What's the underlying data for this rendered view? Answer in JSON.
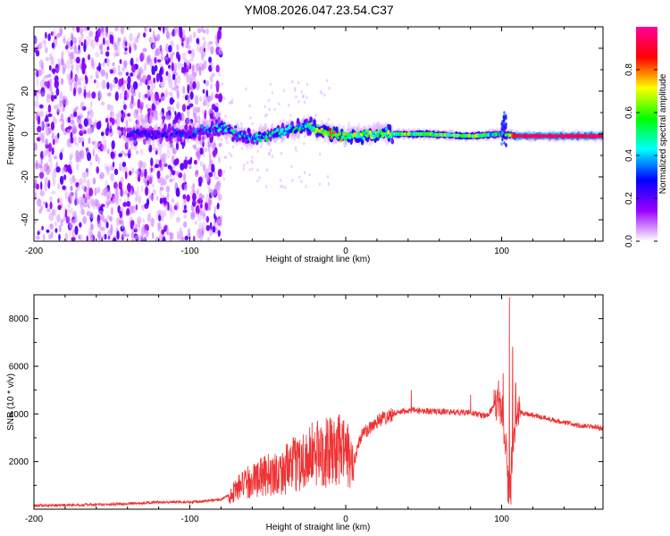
{
  "figure": {
    "title": "YM08.2026.047.23.54.C37"
  },
  "chart_data": [
    {
      "type": "heatmap",
      "name": "spectrogram",
      "xlabel": "Height of straight line (km)",
      "ylabel": "Frequency (Hz)",
      "xlim": [
        -200,
        165
      ],
      "ylim": [
        -50,
        50
      ],
      "x_ticks": [
        -200,
        -100,
        0,
        100
      ],
      "x_tick_labels": [
        "-200",
        "-100",
        "0",
        "100"
      ],
      "y_ticks": [
        -40,
        -20,
        0,
        20,
        40
      ],
      "y_tick_labels": [
        "-40",
        "-20",
        "0",
        "20",
        "40"
      ],
      "ridge_start_km": -140,
      "noise_end_km": -80,
      "ridge": [
        {
          "x": -140,
          "freq": 0,
          "amp": 0.15
        },
        {
          "x": -100,
          "freq": 0,
          "amp": 0.2
        },
        {
          "x": -80,
          "freq": 3,
          "amp": 0.35
        },
        {
          "x": -60,
          "freq": -2,
          "amp": 0.35
        },
        {
          "x": -40,
          "freq": 1,
          "amp": 0.4
        },
        {
          "x": -25,
          "freq": 4,
          "amp": 0.45
        },
        {
          "x": -10,
          "freq": 0,
          "amp": 0.7
        },
        {
          "x": 0,
          "freq": -1,
          "amp": 0.6
        },
        {
          "x": 20,
          "freq": 0,
          "amp": 0.55
        },
        {
          "x": 50,
          "freq": 0,
          "amp": 0.55
        },
        {
          "x": 80,
          "freq": -1,
          "amp": 0.6
        },
        {
          "x": 100,
          "freq": 0,
          "amp": 0.4
        },
        {
          "x": 110,
          "freq": -1,
          "amp": 0.95
        },
        {
          "x": 165,
          "freq": -1,
          "amp": 0.95
        }
      ],
      "colorbar": {
        "label": "Normalized spectral amplitude",
        "range": [
          0,
          1
        ],
        "ticks": [
          0.0,
          0.2,
          0.4,
          0.6,
          0.8
        ],
        "tick_labels": [
          "0.0",
          "0.2",
          "0.4",
          "0.6",
          "0.8"
        ],
        "colors": [
          "#ffffff",
          "#9900ff",
          "#0000ff",
          "#00ffff",
          "#00ff00",
          "#ffff00",
          "#ff0000",
          "#ff0099"
        ]
      }
    },
    {
      "type": "line",
      "name": "snr",
      "xlabel": "Height of straight line (km)",
      "ylabel": "SNR (10 * v/v)",
      "xlim": [
        -200,
        165
      ],
      "ylim": [
        0,
        9000
      ],
      "x_ticks": [
        -200,
        -100,
        0,
        100
      ],
      "x_tick_labels": [
        "-200",
        "-100",
        "0",
        "100"
      ],
      "y_ticks": [
        2000,
        4000,
        6000,
        8000
      ],
      "y_tick_labels": [
        "2000",
        "4000",
        "6000",
        "8000"
      ],
      "line_color": "#ee3333",
      "series": [
        {
          "name": "SNR",
          "x": [
            -200,
            -150,
            -120,
            -100,
            -80,
            -75,
            -70,
            -60,
            -50,
            -40,
            -30,
            -20,
            -10,
            0,
            5,
            10,
            20,
            30,
            40,
            60,
            80,
            90,
            95,
            100,
            103,
            105,
            107,
            110,
            130,
            150,
            165
          ],
          "y": [
            150,
            200,
            300,
            300,
            400,
            600,
            1100,
            1500,
            1800,
            2000,
            2500,
            2900,
            3000,
            3100,
            2000,
            3100,
            3700,
            4000,
            4150,
            4100,
            4050,
            3900,
            4300,
            4300,
            2500,
            500,
            2500,
            4100,
            3800,
            3500,
            3400
          ],
          "spikes": [
            {
              "x": 42,
              "y": 5000
            },
            {
              "x": 80,
              "y": 4800
            },
            {
              "x": 98,
              "y": 5400
            },
            {
              "x": 101,
              "y": 5700
            },
            {
              "x": 104,
              "y": 300
            },
            {
              "x": 105,
              "y": 8900
            },
            {
              "x": 106,
              "y": 200
            },
            {
              "x": 107,
              "y": 6800
            },
            {
              "x": 109,
              "y": 5300
            }
          ]
        }
      ]
    }
  ]
}
